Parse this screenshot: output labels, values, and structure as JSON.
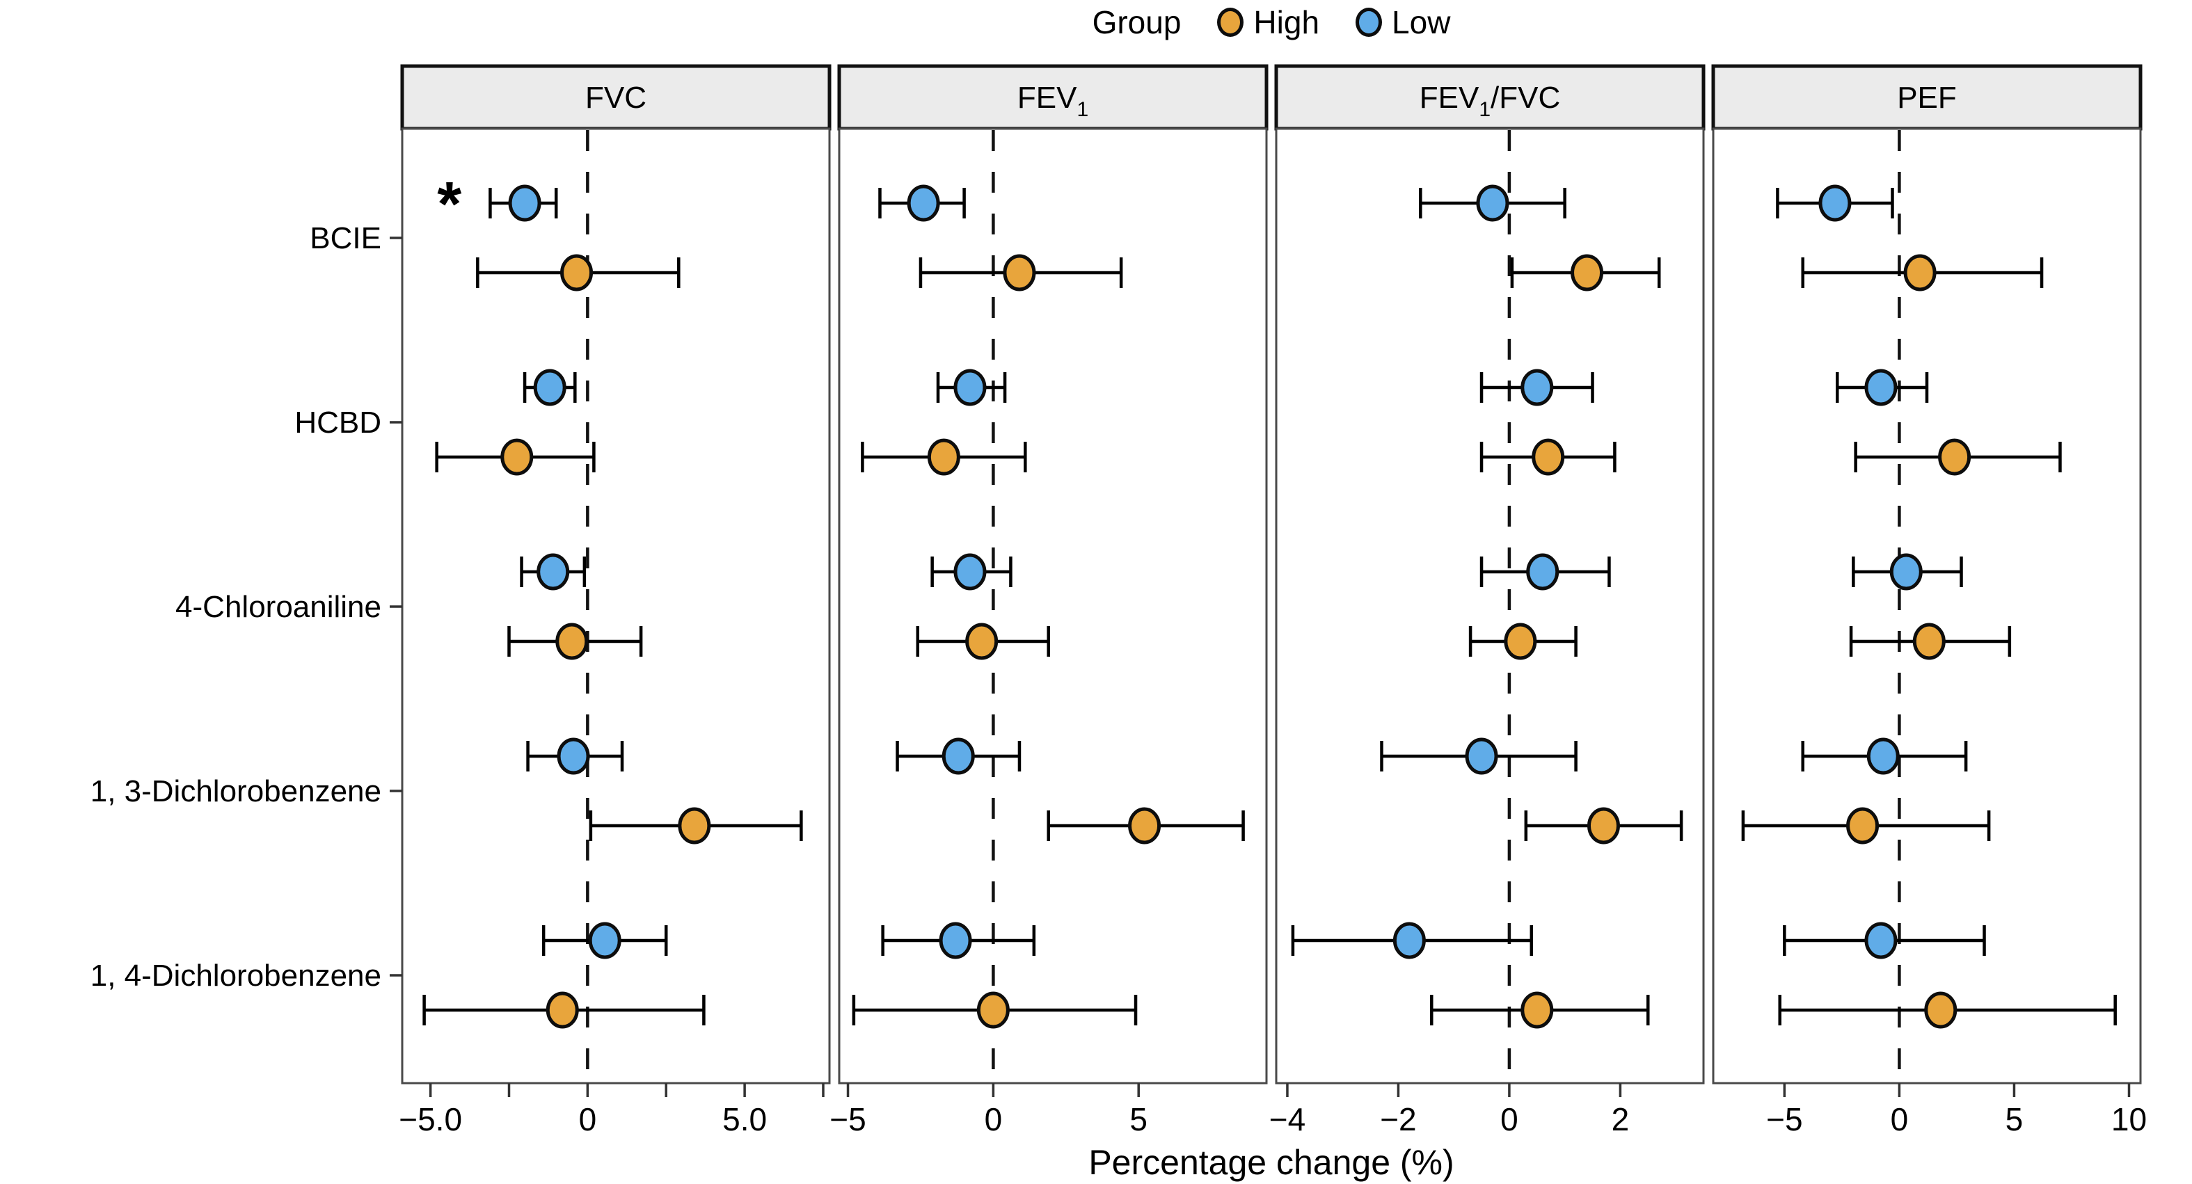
{
  "legend": {
    "title": "Group",
    "items": [
      {
        "label": "High",
        "color": "#E8A53C"
      },
      {
        "label": "Low",
        "color": "#60ACE8"
      }
    ]
  },
  "chart_data": {
    "type": "scatter",
    "subtype": "forest-plot-dot-with-error-bars",
    "title": "",
    "xlabel": "Percentage change (%)",
    "ylabel": "",
    "grid": false,
    "legend_position": "top-center",
    "categories": [
      "BCIE",
      "HCBD",
      "4-Chloroaniline",
      "1, 3-Dichlorobenzene",
      "1, 4-Dichlorobenzene"
    ],
    "groups": [
      {
        "name": "High",
        "color": "#E8A53C"
      },
      {
        "name": "Low",
        "color": "#60ACE8"
      }
    ],
    "reference_line_x": 0,
    "panels": [
      {
        "title_parts": [
          {
            "t": "FVC",
            "sub": false
          }
        ],
        "xlim": [
          -5.9,
          7.7
        ],
        "ticks": [
          {
            "v": -5.0,
            "label": "−5.0"
          },
          {
            "v": -2.5,
            "label": ""
          },
          {
            "v": 0,
            "label": "0"
          },
          {
            "v": 2.5,
            "label": ""
          },
          {
            "v": 5.0,
            "label": "5.0"
          },
          {
            "v": 7.5,
            "label": ""
          }
        ],
        "low": [
          {
            "est": -2.0,
            "lo": -3.1,
            "hi": -1.0
          },
          {
            "est": -1.2,
            "lo": -2.0,
            "hi": -0.4
          },
          {
            "est": -1.1,
            "lo": -2.1,
            "hi": -0.1
          },
          {
            "est": -0.45,
            "lo": -1.9,
            "hi": 1.1
          },
          {
            "est": 0.55,
            "lo": -1.4,
            "hi": 2.5
          }
        ],
        "high": [
          {
            "est": -0.35,
            "lo": -3.5,
            "hi": 2.9
          },
          {
            "est": -2.25,
            "lo": -4.8,
            "hi": 0.2
          },
          {
            "est": -0.5,
            "lo": -2.5,
            "hi": 1.7
          },
          {
            "est": 3.4,
            "lo": 0.1,
            "hi": 6.8
          },
          {
            "est": -0.8,
            "lo": -5.2,
            "hi": 3.7
          }
        ],
        "annotations": [
          {
            "text": "*",
            "x": -4.4,
            "category_index": 0,
            "group": "Low"
          }
        ]
      },
      {
        "title_parts": [
          {
            "t": "FEV",
            "sub": false
          },
          {
            "t": "1",
            "sub": true
          }
        ],
        "xlim": [
          -5.3,
          9.4
        ],
        "ticks": [
          {
            "v": -5,
            "label": "−5"
          },
          {
            "v": 0,
            "label": "0"
          },
          {
            "v": 5,
            "label": "5"
          }
        ],
        "low": [
          {
            "est": -2.4,
            "lo": -3.9,
            "hi": -1.0
          },
          {
            "est": -0.8,
            "lo": -1.9,
            "hi": 0.4
          },
          {
            "est": -0.8,
            "lo": -2.1,
            "hi": 0.6
          },
          {
            "est": -1.2,
            "lo": -3.3,
            "hi": 0.9
          },
          {
            "est": -1.3,
            "lo": -3.8,
            "hi": 1.4
          }
        ],
        "high": [
          {
            "est": 0.9,
            "lo": -2.5,
            "hi": 4.4
          },
          {
            "est": -1.7,
            "lo": -4.5,
            "hi": 1.1
          },
          {
            "est": -0.4,
            "lo": -2.6,
            "hi": 1.9
          },
          {
            "est": 5.2,
            "lo": 1.9,
            "hi": 8.6
          },
          {
            "est": 0.0,
            "lo": -4.8,
            "hi": 4.9
          }
        ],
        "annotations": []
      },
      {
        "title_parts": [
          {
            "t": "FEV",
            "sub": false
          },
          {
            "t": "1",
            "sub": true
          },
          {
            "t": "/FVC",
            "sub": false
          }
        ],
        "xlim": [
          -4.2,
          3.5
        ],
        "ticks": [
          {
            "v": -4,
            "label": "−4"
          },
          {
            "v": -2,
            "label": "−2"
          },
          {
            "v": 0,
            "label": "0"
          },
          {
            "v": 2,
            "label": "2"
          }
        ],
        "low": [
          {
            "est": -0.3,
            "lo": -1.6,
            "hi": 1.0
          },
          {
            "est": 0.5,
            "lo": -0.5,
            "hi": 1.5
          },
          {
            "est": 0.6,
            "lo": -0.5,
            "hi": 1.8
          },
          {
            "est": -0.5,
            "lo": -2.3,
            "hi": 1.2
          },
          {
            "est": -1.8,
            "lo": -3.9,
            "hi": 0.4
          }
        ],
        "high": [
          {
            "est": 1.4,
            "lo": 0.05,
            "hi": 2.7
          },
          {
            "est": 0.7,
            "lo": -0.5,
            "hi": 1.9
          },
          {
            "est": 0.2,
            "lo": -0.7,
            "hi": 1.2
          },
          {
            "est": 1.7,
            "lo": 0.3,
            "hi": 3.1
          },
          {
            "est": 0.5,
            "lo": -1.4,
            "hi": 2.5
          }
        ],
        "annotations": []
      },
      {
        "title_parts": [
          {
            "t": "PEF",
            "sub": false
          }
        ],
        "xlim": [
          -8.1,
          10.5
        ],
        "ticks": [
          {
            "v": -5,
            "label": "−5"
          },
          {
            "v": 0,
            "label": "0"
          },
          {
            "v": 5,
            "label": "5"
          },
          {
            "v": 10,
            "label": "10"
          }
        ],
        "low": [
          {
            "est": -2.8,
            "lo": -5.3,
            "hi": -0.3
          },
          {
            "est": -0.8,
            "lo": -2.7,
            "hi": 1.2
          },
          {
            "est": 0.3,
            "lo": -2.0,
            "hi": 2.7
          },
          {
            "est": -0.7,
            "lo": -4.2,
            "hi": 2.9
          },
          {
            "est": -0.8,
            "lo": -5.0,
            "hi": 3.7
          }
        ],
        "high": [
          {
            "est": 0.9,
            "lo": -4.2,
            "hi": 6.2
          },
          {
            "est": 2.4,
            "lo": -1.9,
            "hi": 7.0
          },
          {
            "est": 1.3,
            "lo": -2.1,
            "hi": 4.8
          },
          {
            "est": -1.6,
            "lo": -6.8,
            "hi": 3.9
          },
          {
            "est": 1.8,
            "lo": -5.2,
            "hi": 9.4
          }
        ],
        "annotations": []
      }
    ],
    "style": {
      "header_fill": "#EBEBEB",
      "header_border": "#111111",
      "panel_border": "#4A4A4A",
      "marker_outline": "#0D0D0D",
      "reference_line_color": "#111111"
    }
  }
}
